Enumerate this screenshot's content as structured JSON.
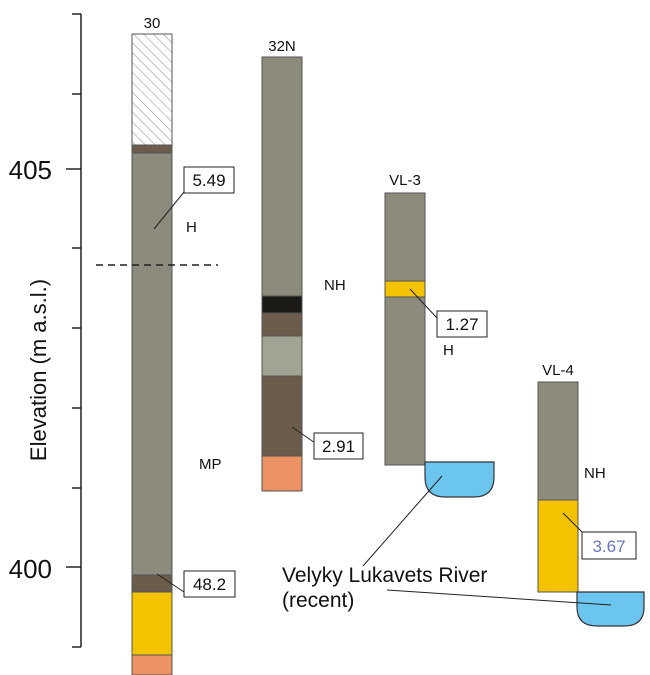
{
  "axis": {
    "label": "Elevation  (m a.s.l.)",
    "tick_labels": [
      "405",
      "400"
    ]
  },
  "columns": [
    {
      "name": "30"
    },
    {
      "name": "32N"
    },
    {
      "name": "VL-3"
    },
    {
      "name": "VL-4"
    }
  ],
  "value_labels": [
    "5.49",
    "48.2",
    "2.91",
    "1.27",
    "3.67"
  ],
  "unit_labels": {
    "h_30": "H",
    "nh_32n": "NH",
    "h_vl3": "H",
    "mp": "MP",
    "nh_vl4": "NH"
  },
  "river": {
    "line1": "Velyky Lukavets River",
    "line2": "(recent)"
  },
  "colors": {
    "grey_sediment": "#8d8b7b",
    "dark_brown": "#6c5c4b",
    "black_layer": "#1c1a17",
    "light_grey": "#a3a393",
    "yellow": "#f3c300",
    "orange": "#eb9163",
    "water": "#6cc5ee",
    "highlight_label": "#6a77c0"
  },
  "icons": [
    "water-body-icon"
  ]
}
